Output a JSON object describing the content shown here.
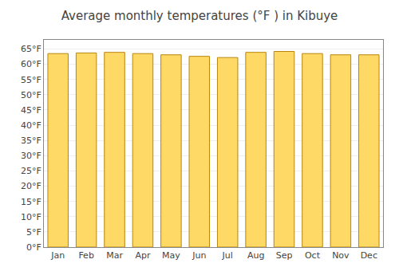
{
  "chart_data": {
    "type": "bar",
    "title": "Average monthly temperatures (°F ) in Kibuye",
    "categories": [
      "Jan",
      "Feb",
      "Mar",
      "Apr",
      "May",
      "Jun",
      "Jul",
      "Aug",
      "Sep",
      "Oct",
      "Nov",
      "Dec"
    ],
    "values": [
      63.5,
      63.7,
      63.9,
      63.5,
      63.1,
      62.6,
      62.2,
      63.9,
      64.2,
      63.5,
      63.1,
      63.1
    ],
    "color": "#FFD966",
    "ylim": [
      0,
      68
    ],
    "yticks": [
      {
        "value": 0,
        "label": "0°F"
      },
      {
        "value": 5,
        "label": "5°F"
      },
      {
        "value": 10,
        "label": "10°F"
      },
      {
        "value": 15,
        "label": "15°F"
      },
      {
        "value": 20,
        "label": "20°F"
      },
      {
        "value": 25,
        "label": "25°F"
      },
      {
        "value": 30,
        "label": "30°F"
      },
      {
        "value": 35,
        "label": "35°F"
      },
      {
        "value": 40,
        "label": "40°F"
      },
      {
        "value": 45,
        "label": "45°F"
      },
      {
        "value": 50,
        "label": "50°F"
      },
      {
        "value": 55,
        "label": "55°F"
      },
      {
        "value": 60,
        "label": "60°F"
      },
      {
        "value": 65,
        "label": "65°F"
      }
    ],
    "grid": true
  }
}
